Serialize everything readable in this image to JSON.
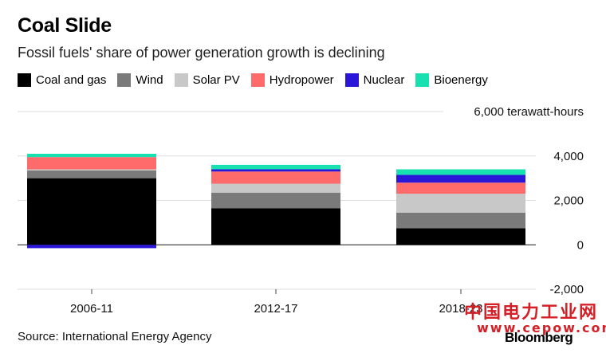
{
  "title": "Coal Slide",
  "subtitle": "Fossil fuels' share of power generation growth is declining",
  "legend": [
    {
      "label": "Coal and gas",
      "color": "#000000"
    },
    {
      "label": "Wind",
      "color": "#7a7a7a"
    },
    {
      "label": "Solar PV",
      "color": "#c8c8c8"
    },
    {
      "label": "Hydropower",
      "color": "#ff6b6b"
    },
    {
      "label": "Nuclear",
      "color": "#2a16d8"
    },
    {
      "label": "Bioenergy",
      "color": "#19e0b0"
    }
  ],
  "source": "Source: International Energy Agency",
  "brand": "Bloomberg",
  "watermark": {
    "cn": "中国电力工业网",
    "url": "www.cepow.com"
  },
  "chart_data": {
    "type": "bar",
    "stacked": true,
    "unit_label": "6,000 terawatt-hours",
    "categories": [
      "2006-11",
      "2012-17",
      "2018-23"
    ],
    "series": [
      {
        "name": "Coal and gas",
        "color": "#000000",
        "values": [
          3000,
          1650,
          750
        ]
      },
      {
        "name": "Wind",
        "color": "#7a7a7a",
        "values": [
          350,
          700,
          700
        ]
      },
      {
        "name": "Solar PV",
        "color": "#c8c8c8",
        "values": [
          50,
          400,
          850
        ]
      },
      {
        "name": "Hydropower",
        "color": "#ff6b6b",
        "values": [
          550,
          550,
          500
        ]
      },
      {
        "name": "Nuclear",
        "color": "#2a16d8",
        "values": [
          -150,
          100,
          350
        ]
      },
      {
        "name": "Bioenergy",
        "color": "#19e0b0",
        "values": [
          150,
          200,
          250
        ]
      }
    ],
    "yticks": [
      {
        "value": 4000,
        "label": "4,000"
      },
      {
        "value": 2000,
        "label": "2,000"
      },
      {
        "value": 0,
        "label": "0"
      },
      {
        "value": -2000,
        "label": "-2,000"
      }
    ],
    "ylim": [
      -2000,
      6000
    ],
    "grid": true,
    "legend_position": "top-left"
  }
}
